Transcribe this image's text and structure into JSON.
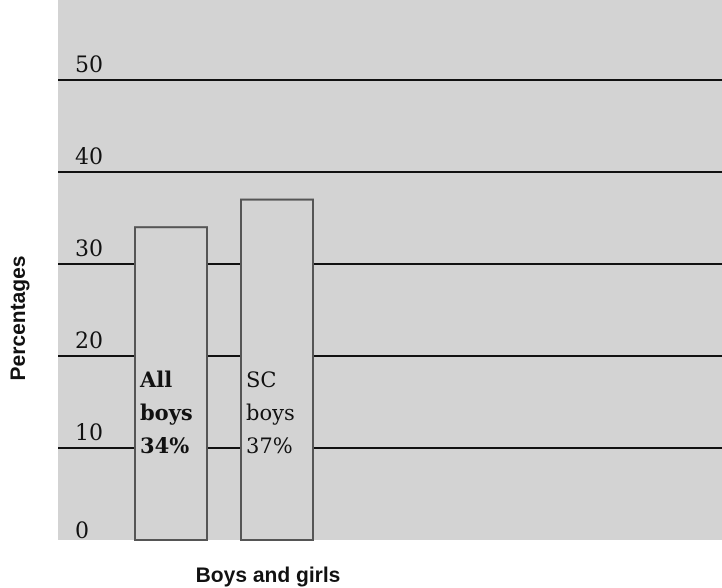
{
  "colors": {
    "plot_background": "#d3d3d3",
    "bar_fill": "#d3d3d3",
    "bar_stroke": "#555555",
    "gridline": "#111111"
  },
  "chart_data": {
    "type": "bar",
    "xlabel": "Boys and girls",
    "ylabel": "Percentages",
    "ylim": [
      0,
      50
    ],
    "yticks": [
      0,
      10,
      20,
      30,
      40,
      50
    ],
    "grid": true,
    "categories": [
      "All boys",
      "SC boys"
    ],
    "values": [
      34,
      37
    ],
    "bar_labels": [
      {
        "lines": [
          "All",
          "boys",
          "34%"
        ],
        "bold": true
      },
      {
        "lines": [
          "SC",
          "boys",
          "37%"
        ],
        "bold": false
      }
    ]
  }
}
